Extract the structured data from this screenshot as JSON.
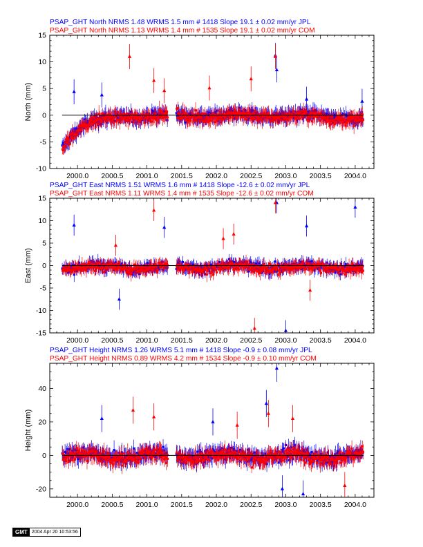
{
  "x_ticks": [
    "2000.0",
    "2000.5",
    "2001.0",
    "2001.5",
    "2002.0",
    "2002.5",
    "2003.0",
    "2003.5",
    "2004.0"
  ],
  "colors": {
    "jpl": "#0000ff",
    "com": "#ff0000",
    "axes": "#000000"
  },
  "chart_data": [
    {
      "type": "scatter",
      "component": "North",
      "header_jpl": "PSAP_GHT North NRMS 1.48 WRMS  1.5 mm # 1418 Slope   19.1 ±  0.02 mm/yr JPL",
      "header_com": "PSAP_GHT North NRMS 1.13 WRMS  1.4 mm # 1535 Slope   19.1 ±  0.02 mm/yr COM",
      "ylabel": "North (mm)",
      "xlim": [
        1999.6,
        2004.27
      ],
      "ylim": [
        -10,
        15
      ],
      "y_ticks": [
        "-10",
        "-5",
        "0",
        "5",
        "10",
        "15"
      ],
      "series": [
        {
          "source": "JPL",
          "color": "#0000ff",
          "data_gap": [
            2001.3,
            2001.42
          ],
          "outliers": [
            [
              2002.85,
              11.2
            ],
            [
              2002.87,
              8.5
            ],
            [
              1999.95,
              4.4
            ],
            [
              2000.35,
              3.8
            ],
            [
              2003.3,
              3.0
            ],
            [
              2004.1,
              2.6
            ]
          ]
        },
        {
          "source": "COM",
          "color": "#ff0000",
          "data_gap": [
            2001.3,
            2001.42
          ],
          "outliers": [
            [
              2000.75,
              11.0
            ],
            [
              2001.1,
              6.5
            ],
            [
              2001.25,
              4.6
            ],
            [
              2002.5,
              6.8
            ],
            [
              2002.85,
              11.0
            ],
            [
              2001.9,
              5.1
            ]
          ]
        }
      ]
    },
    {
      "type": "scatter",
      "component": "East",
      "header_jpl": "PSAP_GHT East NRMS 1.51 WRMS  1.6 mm # 1418 Slope  -12.6 ±  0.02 mm/yr JPL",
      "header_com": "PSAP_GHT East NRMS 1.11 WRMS  1.4 mm # 1535 Slope  -12.6 ±  0.02 mm/yr COM",
      "ylabel": "East (mm)",
      "xlim": [
        1999.6,
        2004.27
      ],
      "ylim": [
        -15,
        15
      ],
      "y_ticks": [
        "-15",
        "-10",
        "-5",
        "0",
        "5",
        "10",
        "15"
      ],
      "series": [
        {
          "source": "JPL",
          "color": "#0000ff",
          "data_gap": [
            2001.3,
            2001.42
          ],
          "outliers": [
            [
              1999.95,
              9.0
            ],
            [
              2002.87,
              14.0
            ],
            [
              2003.3,
              8.8
            ],
            [
              2004.0,
              13.0
            ],
            [
              2003.0,
              -14.5
            ],
            [
              2000.6,
              -7.5
            ],
            [
              2001.25,
              8.5
            ]
          ]
        },
        {
          "source": "COM",
          "color": "#ff0000",
          "data_gap": [
            2001.3,
            2001.42
          ],
          "outliers": [
            [
              2001.1,
              12.3
            ],
            [
              2002.85,
              14.0
            ],
            [
              2002.1,
              6.0
            ],
            [
              2002.25,
              7.0
            ],
            [
              2002.55,
              -14.0
            ],
            [
              2003.35,
              -5.5
            ],
            [
              2000.55,
              4.5
            ]
          ]
        }
      ]
    },
    {
      "type": "scatter",
      "component": "Height",
      "header_jpl": "PSAP_GHT Height NRMS 1.26 WRMS  5.1 mm # 1418 Slope   -0.9 ±  0.08 mm/yr JPL",
      "header_com": "PSAP_GHT Height NRMS 0.89 WRMS  4.2 mm # 1534 Slope   -0.9 ±  0.10 mm/yr COM",
      "ylabel": "Height (mm)",
      "xlim": [
        1999.6,
        2004.27
      ],
      "ylim": [
        -25,
        55
      ],
      "y_ticks": [
        "-20",
        "0",
        "20",
        "40"
      ],
      "series": [
        {
          "source": "JPL",
          "color": "#0000ff",
          "data_gap": [
            2001.3,
            2001.42
          ],
          "outliers": [
            [
              2002.87,
              52.0
            ],
            [
              2002.72,
              31.0
            ],
            [
              2000.35,
              22.0
            ],
            [
              2002.95,
              -20.0
            ],
            [
              2003.25,
              -23.0
            ],
            [
              2001.95,
              20.0
            ]
          ]
        },
        {
          "source": "COM",
          "color": "#ff0000",
          "data_gap": [
            2001.3,
            2001.42
          ],
          "outliers": [
            [
              2000.8,
              27.0
            ],
            [
              2001.1,
              23.0
            ],
            [
              2002.75,
              25.0
            ],
            [
              2003.85,
              -18.0
            ],
            [
              2003.1,
              22.0
            ],
            [
              2002.3,
              18.0
            ]
          ]
        }
      ]
    }
  ],
  "gmt_stamp": {
    "logo": "GMT",
    "timestamp": "2004 Apr 20 10:53:56"
  }
}
